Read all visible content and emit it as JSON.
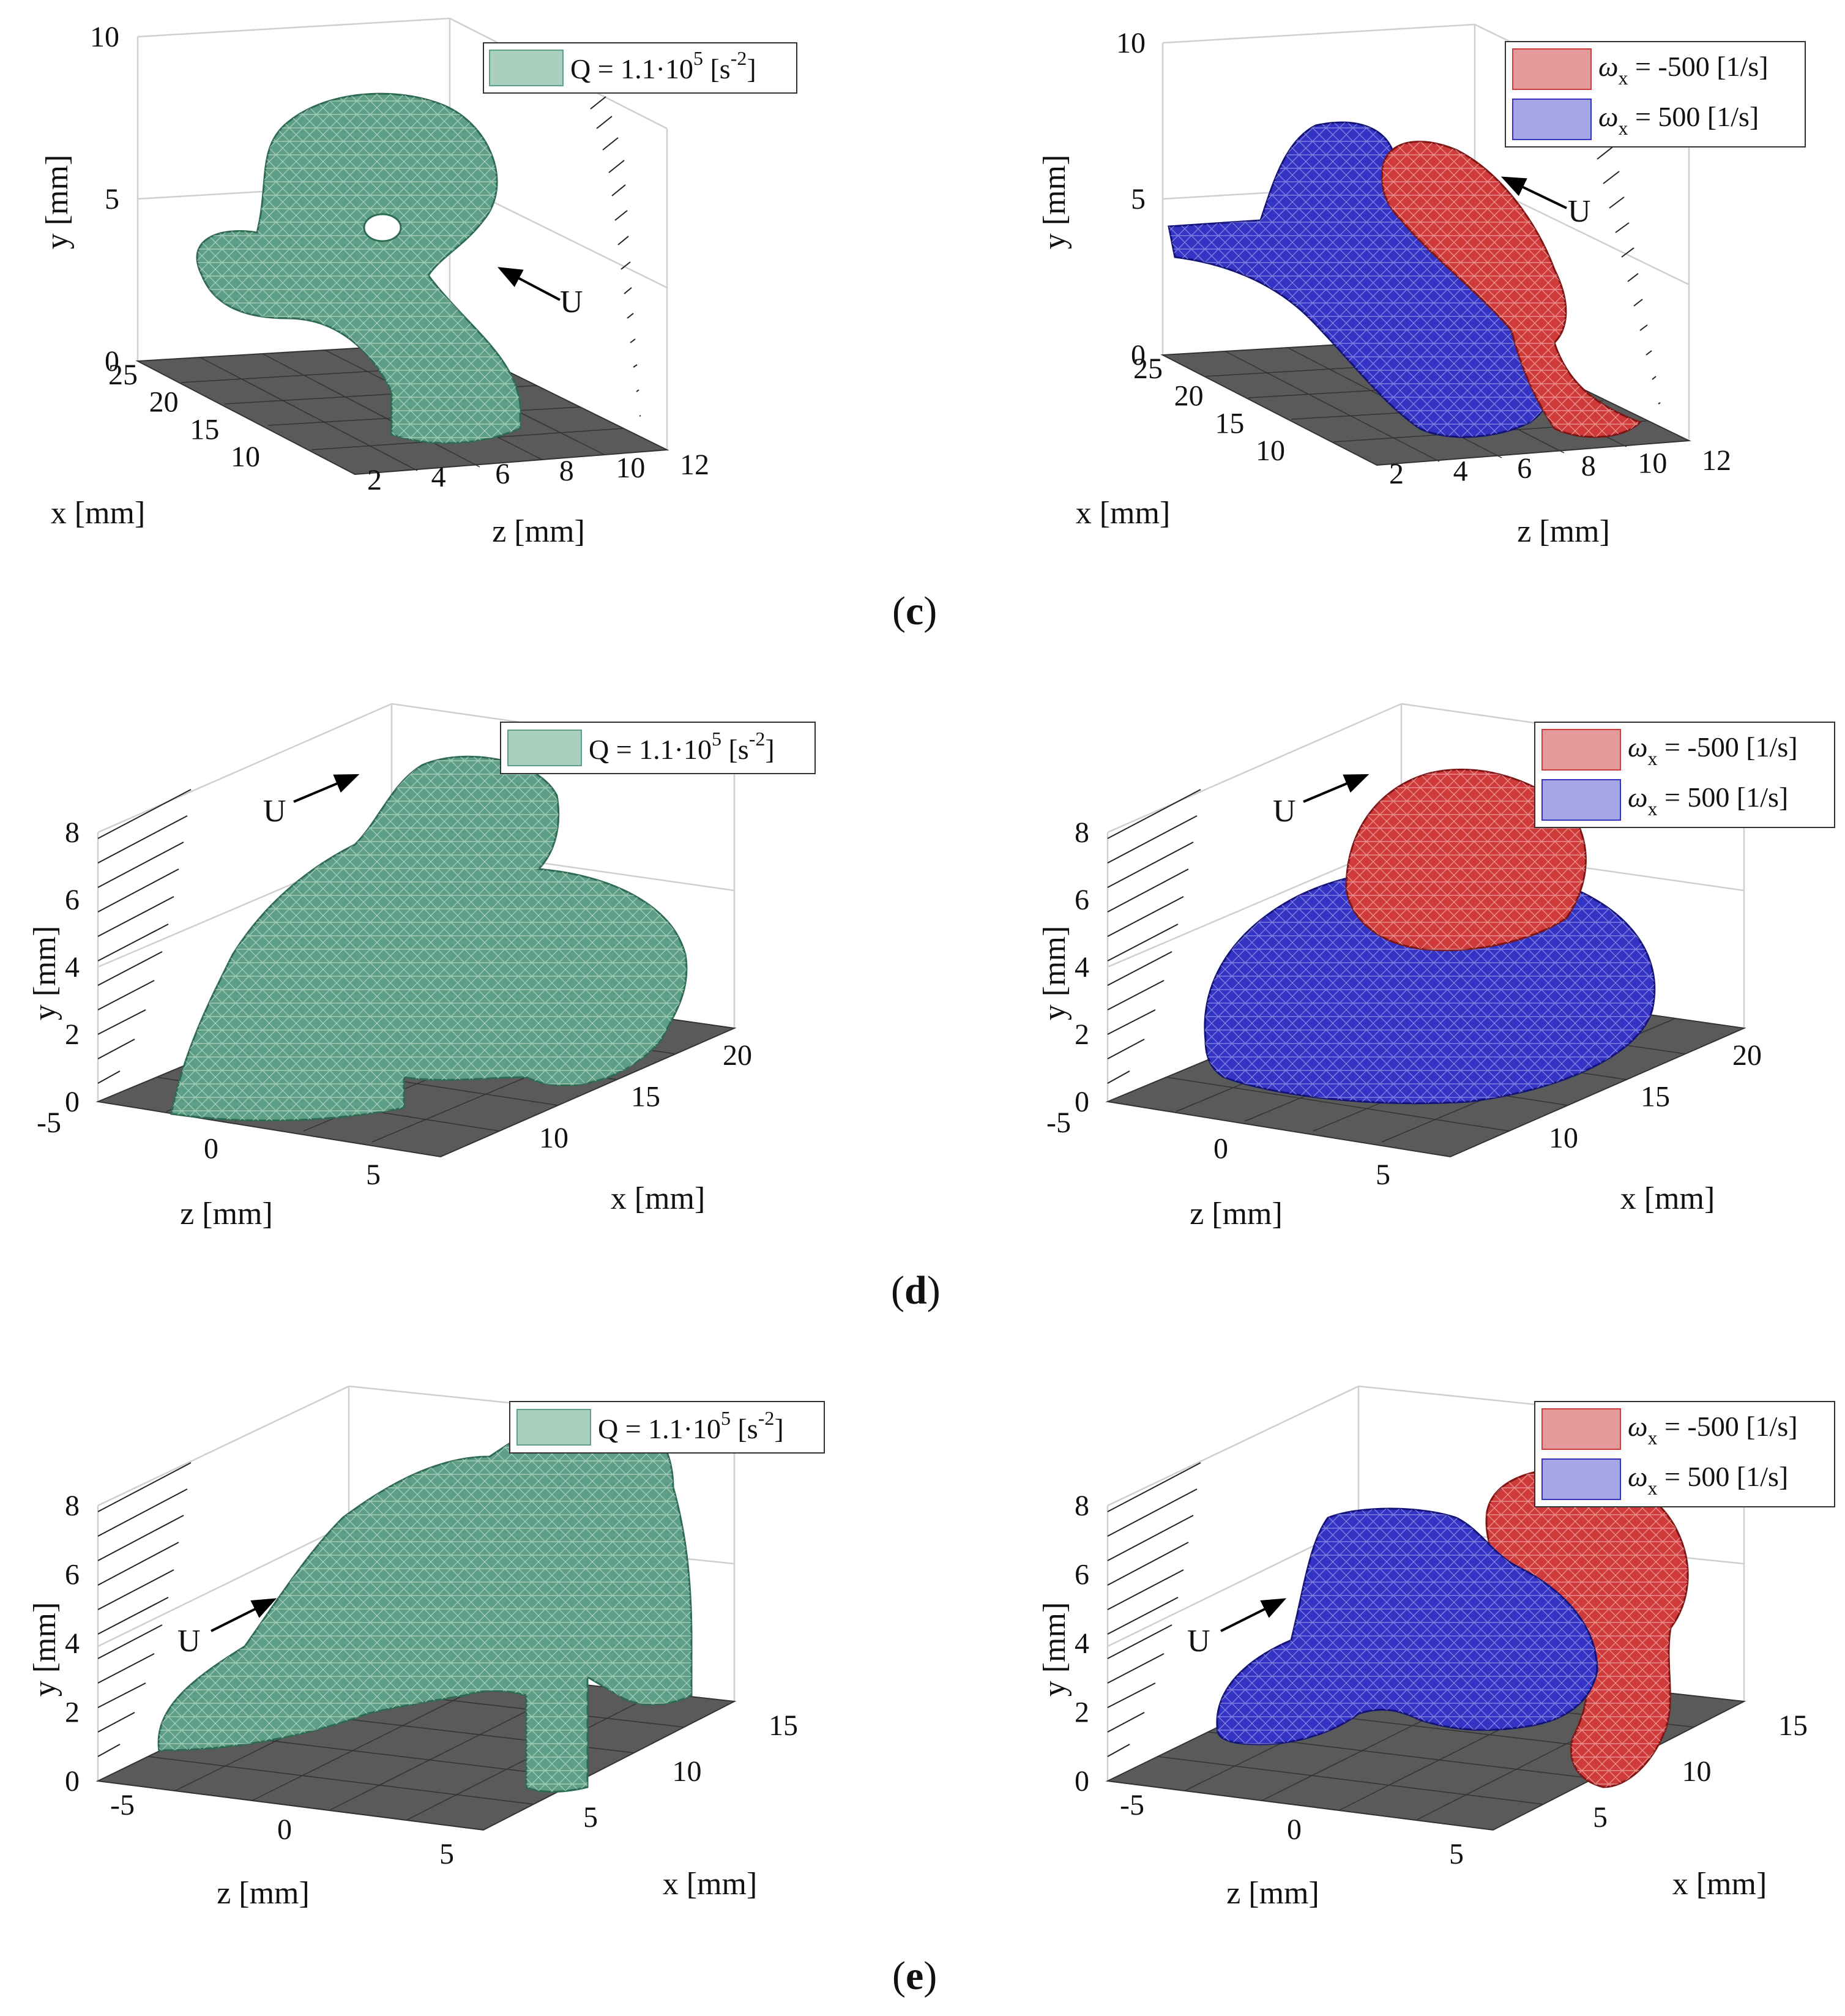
{
  "panel_labels": [
    "c",
    "d",
    "e"
  ],
  "arrow_label": "U",
  "colors": {
    "q_fill": "#5e9e86",
    "q_edge": "#2e6a52",
    "neg_fill": "#cf3b3b",
    "neg_edge": "#7e1414",
    "pos_fill": "#3434c4",
    "pos_edge": "#12127a",
    "floor": "#5a5a5a",
    "box": "#cfcfcf"
  },
  "legends": {
    "q": {
      "text": "Q = 1.1·10",
      "sup1": "5",
      "unit_open": " [s",
      "sup2": "-2",
      "unit_close": "]"
    },
    "omega_neg": {
      "sym": "ω",
      "sub": "x",
      "rest": " = -500 [1/s]"
    },
    "omega_pos": {
      "sym": "ω",
      "sub": "x",
      "rest": " = 500 [1/s]"
    }
  },
  "chart_data": [
    {
      "type": "surface",
      "panel": "c",
      "position": "left",
      "title": "",
      "legend": [
        "Q = 1.1·10^5 [s^-2]"
      ],
      "legend_placement": "top-right",
      "xlabel": "x [mm]",
      "ylabel": "y [mm]",
      "zlabel": "z [mm]",
      "xticks": [
        "25",
        "20",
        "15",
        "10"
      ],
      "yticks": [
        "0",
        "5",
        "10"
      ],
      "zticks": [
        "2",
        "4",
        "6",
        "8",
        "10",
        "12"
      ],
      "ylim": [
        0,
        10
      ],
      "grid": true,
      "arrow_direction": "upstream-left",
      "series": [
        {
          "name": "Q = 1.1·10^5 [s^-2]",
          "kind": "Q-criterion isosurface"
        }
      ]
    },
    {
      "type": "surface",
      "panel": "c",
      "position": "right",
      "title": "",
      "legend": [
        "ωx = -500 [1/s]",
        "ωx = 500 [1/s]"
      ],
      "legend_placement": "top-right",
      "xlabel": "x [mm]",
      "ylabel": "y [mm]",
      "zlabel": "z [mm]",
      "xticks": [
        "25",
        "20",
        "15",
        "10"
      ],
      "yticks": [
        "0",
        "5",
        "10"
      ],
      "zticks": [
        "2",
        "4",
        "6",
        "8",
        "10",
        "12"
      ],
      "ylim": [
        0,
        10
      ],
      "grid": true,
      "series": [
        {
          "name": "ωx = -500 [1/s]",
          "kind": "vorticity isosurface"
        },
        {
          "name": "ωx = 500 [1/s]",
          "kind": "vorticity isosurface"
        }
      ]
    },
    {
      "type": "surface",
      "panel": "d",
      "position": "left",
      "title": "",
      "legend": [
        "Q = 1.1·10^5 [s^-2]"
      ],
      "legend_placement": "top-right",
      "xlabel": "x [mm]",
      "ylabel": "y [mm]",
      "zlabel": "z [mm]",
      "xticks": [
        "10",
        "15",
        "20"
      ],
      "yticks": [
        "0",
        "2",
        "4",
        "6",
        "8"
      ],
      "zticks": [
        "-5",
        "0",
        "5"
      ],
      "ylim": [
        0,
        8
      ],
      "grid": true,
      "series": [
        {
          "name": "Q = 1.1·10^5 [s^-2]",
          "kind": "Q-criterion isosurface"
        }
      ]
    },
    {
      "type": "surface",
      "panel": "d",
      "position": "right",
      "title": "",
      "legend": [
        "ωx = -500 [1/s]",
        "ωx = 500 [1/s]"
      ],
      "legend_placement": "top-right",
      "xlabel": "x [mm]",
      "ylabel": "y [mm]",
      "zlabel": "z [mm]",
      "xticks": [
        "10",
        "15",
        "20"
      ],
      "yticks": [
        "0",
        "2",
        "4",
        "6",
        "8"
      ],
      "zticks": [
        "-5",
        "0",
        "5"
      ],
      "ylim": [
        0,
        8
      ],
      "grid": true,
      "series": [
        {
          "name": "ωx = -500 [1/s]",
          "kind": "vorticity isosurface"
        },
        {
          "name": "ωx = 500 [1/s]",
          "kind": "vorticity isosurface"
        }
      ]
    },
    {
      "type": "surface",
      "panel": "e",
      "position": "left",
      "title": "",
      "legend": [
        "Q = 1.1·10^5 [s^-2]"
      ],
      "legend_placement": "top-right",
      "xlabel": "x [mm]",
      "ylabel": "y [mm]",
      "zlabel": "z [mm]",
      "xticks": [
        "5",
        "10",
        "15"
      ],
      "yticks": [
        "0",
        "2",
        "4",
        "6",
        "8"
      ],
      "zticks": [
        "-5",
        "0",
        "5"
      ],
      "ylim": [
        0,
        8
      ],
      "grid": true,
      "series": [
        {
          "name": "Q = 1.1·10^5 [s^-2]",
          "kind": "Q-criterion isosurface"
        }
      ]
    },
    {
      "type": "surface",
      "panel": "e",
      "position": "right",
      "title": "",
      "legend": [
        "ωx = -500 [1/s]",
        "ωx = 500 [1/s]"
      ],
      "legend_placement": "top-right",
      "xlabel": "x [mm]",
      "ylabel": "y [mm]",
      "zlabel": "z [mm]",
      "xticks": [
        "5",
        "10",
        "15"
      ],
      "yticks": [
        "0",
        "2",
        "4",
        "6",
        "8"
      ],
      "zticks": [
        "-5",
        "0",
        "5"
      ],
      "ylim": [
        0,
        8
      ],
      "grid": true,
      "series": [
        {
          "name": "ωx = -500 [1/s]",
          "kind": "vorticity isosurface"
        },
        {
          "name": "ωx = 500 [1/s]",
          "kind": "vorticity isosurface"
        }
      ]
    }
  ]
}
